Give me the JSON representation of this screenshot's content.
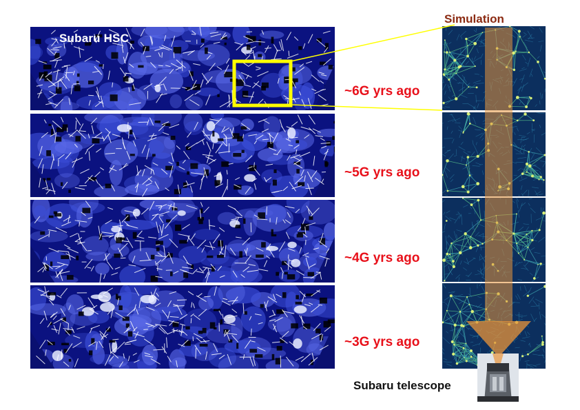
{
  "observation": {
    "title": "Subaru HSC"
  },
  "ages": [
    {
      "label": "~6G yrs ago"
    },
    {
      "label": "~5G yrs ago"
    },
    {
      "label": "~4G yrs ago"
    },
    {
      "label": "~3G yrs ago"
    }
  ],
  "simulation": {
    "title": "Simulation"
  },
  "telescope": {
    "label": "Subaru telescope"
  },
  "colors": {
    "map_background": "#0b1280",
    "age_text": "#e8101a",
    "simulation_title": "#8b2a12",
    "highlight": "#ffff00",
    "beam": "#e89a3c"
  }
}
